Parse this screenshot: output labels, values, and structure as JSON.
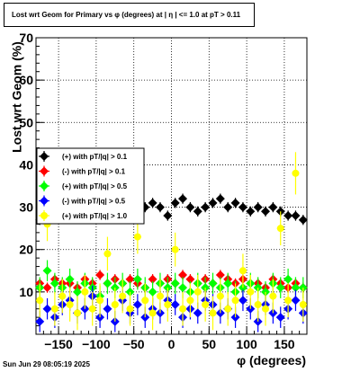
{
  "chart_data": {
    "type": "scatter",
    "title": "Lost wrt Geom for Primary vs φ (degrees) at |  η  | <= 1.0 at pT > 0.11",
    "xlabel": "φ (degrees)",
    "ylabel": "Lost wrt Geom (%)",
    "xlim": [
      -180,
      180
    ],
    "ylim": [
      0,
      70
    ],
    "xticks": [
      -150,
      -100,
      -50,
      0,
      50,
      100,
      150
    ],
    "xtick_labels": [
      "−150",
      "−100",
      "−50",
      "0",
      "50",
      "100",
      "150"
    ],
    "yticks": [
      10,
      20,
      30,
      40,
      50,
      60,
      70
    ],
    "grid": true,
    "legend_position": "left-middle",
    "series": [
      {
        "name": "(+) with pT/|q| > 0.1",
        "color": "#000000",
        "marker": "diamond",
        "x": [
          -175,
          -165,
          -155,
          -145,
          -135,
          -125,
          -115,
          -105,
          -95,
          -85,
          -75,
          -65,
          -55,
          -45,
          -35,
          -25,
          -15,
          -5,
          5,
          15,
          25,
          35,
          45,
          55,
          65,
          75,
          85,
          95,
          105,
          115,
          125,
          135,
          145,
          155,
          165,
          175
        ],
        "y": [
          27,
          28,
          29,
          28,
          30,
          29,
          31,
          30,
          32,
          29,
          30,
          31,
          30,
          29,
          30,
          31,
          30,
          28,
          31,
          32,
          30,
          29,
          30,
          31,
          32,
          30,
          31,
          30,
          29,
          30,
          29,
          30,
          29,
          28,
          28,
          27
        ],
        "err": [
          1.2,
          1.2,
          1.2,
          1.2,
          1.2,
          1.2,
          1.2,
          1.2,
          1.2,
          1.2,
          1.2,
          1.2,
          1.2,
          1.2,
          1.2,
          1.2,
          1.2,
          1.2,
          1.2,
          1.2,
          1.2,
          1.2,
          1.2,
          1.2,
          1.2,
          1.2,
          1.2,
          1.2,
          1.2,
          1.2,
          1.2,
          1.2,
          1.2,
          1.2,
          1.2,
          1.2
        ]
      },
      {
        "name": "(-) with pT/|q| > 0.1",
        "color": "#ff0000",
        "marker": "diamond",
        "x": [
          -175,
          -165,
          -155,
          -145,
          -135,
          -125,
          -115,
          -105,
          -95,
          -85,
          -75,
          -65,
          -55,
          -45,
          -35,
          -25,
          -15,
          -5,
          5,
          15,
          25,
          35,
          45,
          55,
          65,
          75,
          85,
          95,
          105,
          115,
          125,
          135,
          145,
          155,
          165,
          175
        ],
        "y": [
          12,
          11,
          13,
          12,
          12,
          11,
          13,
          12,
          14,
          12,
          13,
          12,
          13,
          12,
          11,
          13,
          12,
          13,
          12,
          14,
          13,
          12,
          13,
          12,
          14,
          13,
          12,
          13,
          12,
          12,
          11,
          13,
          12,
          11,
          12,
          11
        ],
        "err": [
          1.2,
          1.2,
          1.2,
          1.2,
          1.2,
          1.2,
          1.2,
          1.2,
          1.2,
          1.2,
          1.2,
          1.2,
          1.2,
          1.2,
          1.2,
          1.2,
          1.2,
          1.2,
          1.2,
          1.2,
          1.2,
          1.2,
          1.2,
          1.2,
          1.2,
          1.2,
          1.2,
          1.2,
          1.2,
          1.2,
          1.2,
          1.2,
          1.2,
          1.2,
          1.2,
          1.2
        ]
      },
      {
        "name": "(+) with pT/|q| > 0.5",
        "color": "#00ff00",
        "marker": "diamond",
        "x": [
          -175,
          -165,
          -155,
          -145,
          -135,
          -125,
          -115,
          -105,
          -95,
          -85,
          -75,
          -65,
          -55,
          -45,
          -35,
          -25,
          -15,
          -5,
          5,
          15,
          25,
          35,
          45,
          55,
          65,
          75,
          85,
          95,
          105,
          115,
          125,
          135,
          145,
          155,
          165,
          175
        ],
        "y": [
          11,
          15,
          12,
          11,
          13,
          10,
          12,
          11,
          9,
          12,
          11,
          12,
          10,
          13,
          11,
          10,
          12,
          11,
          12,
          11,
          10,
          12,
          11,
          12,
          11,
          12,
          10,
          11,
          12,
          11,
          10,
          12,
          11,
          13,
          11,
          11
        ],
        "err": [
          2.5,
          2.5,
          2.5,
          2.5,
          2.5,
          2.5,
          2.5,
          2.5,
          2.5,
          2.5,
          2.5,
          2.5,
          2.5,
          2.5,
          2.5,
          2.5,
          2.5,
          2.5,
          2.5,
          2.5,
          2.5,
          2.5,
          2.5,
          2.5,
          2.5,
          2.5,
          2.5,
          2.5,
          2.5,
          2.5,
          2.5,
          2.5,
          2.5,
          2.5,
          2.5,
          2.5
        ]
      },
      {
        "name": "(-) with pT/|q| > 0.5",
        "color": "#0000ff",
        "marker": "diamond",
        "x": [
          -175,
          -165,
          -155,
          -145,
          -135,
          -125,
          -115,
          -105,
          -95,
          -85,
          -75,
          -65,
          -55,
          -45,
          -35,
          -25,
          -15,
          -5,
          5,
          15,
          25,
          35,
          45,
          55,
          65,
          75,
          85,
          95,
          105,
          115,
          125,
          135,
          145,
          155,
          165,
          175
        ],
        "y": [
          3,
          6,
          4,
          7,
          8,
          5,
          6,
          9,
          4,
          6,
          3,
          8,
          5,
          7,
          4,
          6,
          5,
          8,
          7,
          4,
          6,
          5,
          8,
          7,
          5,
          6,
          4,
          8,
          6,
          3,
          7,
          5,
          4,
          6,
          8,
          5
        ],
        "err": [
          2.5,
          2.5,
          2.5,
          2.5,
          2.5,
          2.5,
          2.5,
          2.5,
          2.5,
          2.5,
          2.5,
          2.5,
          2.5,
          2.5,
          2.5,
          2.5,
          2.5,
          2.5,
          2.5,
          2.5,
          2.5,
          2.5,
          2.5,
          2.5,
          2.5,
          2.5,
          2.5,
          2.5,
          2.5,
          2.5,
          2.5,
          2.5,
          2.5,
          2.5,
          2.5,
          2.5
        ]
      },
      {
        "name": "(+) with pT/|q| > 1.0",
        "color": "#ffff00",
        "marker": "circle",
        "x": [
          -175,
          -165,
          -155,
          -145,
          -135,
          -125,
          -115,
          -105,
          -95,
          -85,
          -75,
          -65,
          -55,
          -45,
          -35,
          -25,
          -15,
          -5,
          5,
          15,
          25,
          35,
          45,
          55,
          65,
          75,
          85,
          95,
          105,
          115,
          125,
          135,
          145,
          155,
          165,
          175
        ],
        "y": [
          8,
          26,
          6,
          9,
          7,
          5,
          10,
          6,
          8,
          19,
          7,
          9,
          6,
          23,
          8,
          5,
          9,
          7,
          20,
          6,
          8,
          10,
          7,
          5,
          9,
          6,
          8,
          15,
          10,
          7,
          6,
          9,
          25,
          8,
          38,
          7
        ],
        "err": [
          4,
          4,
          4,
          4,
          4,
          4,
          4,
          4,
          4,
          4,
          4,
          4,
          4,
          4,
          4,
          4,
          4,
          4,
          4,
          4,
          4,
          4,
          4,
          4,
          4,
          4,
          4,
          4,
          4,
          4,
          4,
          4,
          4,
          4,
          5,
          4
        ]
      }
    ]
  },
  "footer": "Sun Jun 29 08:05:19 2025"
}
